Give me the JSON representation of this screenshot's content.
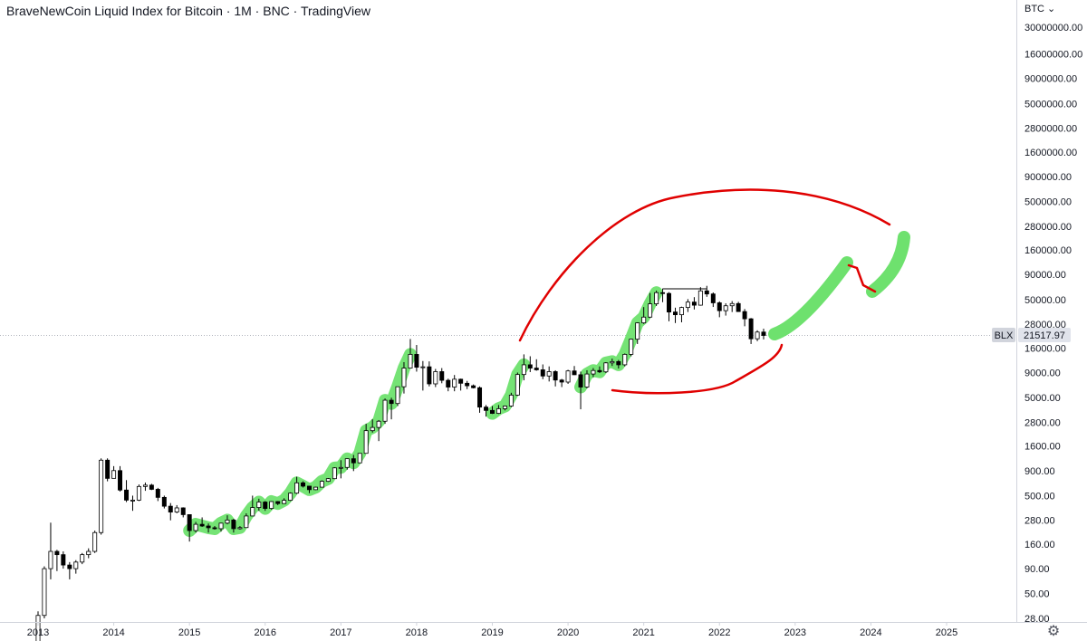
{
  "title": "BraveNewCoin Liquid Index for Bitcoin · 1M · BNC · TradingView",
  "currency_label": "BTC ⌄",
  "settings_icon": "gear-icon",
  "colors": {
    "candle_up_fill": "#ffffff",
    "candle_down_fill": "#000000",
    "candle_stroke": "#000000",
    "green_highlight": "#6ee16e",
    "red_annotation": "#e00000",
    "price_line": "#b2b5be",
    "symbol_tag_bg": "#d1d4dc",
    "price_tag_bg": "#e0e3eb"
  },
  "chart_data": {
    "type": "candlestick",
    "scale": "log",
    "title": "",
    "xlabel": "",
    "ylabel": "",
    "x_ticks": [
      "2013",
      "2014",
      "2015",
      "2016",
      "2017",
      "2018",
      "2019",
      "2020",
      "2021",
      "2022",
      "2023",
      "2024",
      "2025"
    ],
    "y_ticks": [
      "30000000.00",
      "16000000.00",
      "9000000.00",
      "5000000.00",
      "2800000.00",
      "1600000.00",
      "900000.00",
      "500000.00",
      "280000.00",
      "160000.00",
      "90000.00",
      "50000.00",
      "28000.00",
      "16000.00",
      "9000.00",
      "5000.00",
      "2800.00",
      "1600.00",
      "900.00",
      "500.00",
      "280.00",
      "160.00",
      "90.00",
      "50.00",
      "28.00"
    ],
    "ylim": [
      25,
      35000000
    ],
    "xlim": [
      2012.9,
      2026.1
    ],
    "symbol": "BLX",
    "last_price": "21517.97",
    "last_price_value": 21517.97,
    "candles_ohlc": [
      [
        2013.0,
        13,
        33,
        13,
        30
      ],
      [
        2013.083,
        30,
        95,
        28,
        90
      ],
      [
        2013.167,
        90,
        265,
        70,
        135
      ],
      [
        2013.25,
        135,
        140,
        85,
        125
      ],
      [
        2013.333,
        125,
        135,
        90,
        98
      ],
      [
        2013.417,
        98,
        105,
        70,
        90
      ],
      [
        2013.5,
        90,
        110,
        80,
        105
      ],
      [
        2013.583,
        105,
        130,
        100,
        125
      ],
      [
        2013.667,
        125,
        145,
        115,
        135
      ],
      [
        2013.75,
        135,
        220,
        130,
        210
      ],
      [
        2013.833,
        210,
        1200,
        200,
        1150
      ],
      [
        2013.917,
        1150,
        1200,
        700,
        750
      ],
      [
        2014.0,
        750,
        1000,
        750,
        900
      ],
      [
        2014.083,
        900,
        1000,
        550,
        570
      ],
      [
        2014.167,
        570,
        720,
        430,
        450
      ],
      [
        2014.25,
        450,
        500,
        350,
        450
      ],
      [
        2014.333,
        450,
        650,
        440,
        620
      ],
      [
        2014.417,
        620,
        680,
        560,
        640
      ],
      [
        2014.5,
        640,
        660,
        570,
        580
      ],
      [
        2014.583,
        580,
        600,
        440,
        480
      ],
      [
        2014.667,
        480,
        500,
        370,
        390
      ],
      [
        2014.75,
        390,
        420,
        280,
        340
      ],
      [
        2014.833,
        340,
        400,
        330,
        375
      ],
      [
        2014.917,
        375,
        380,
        300,
        320
      ],
      [
        2015.0,
        320,
        320,
        170,
        220
      ],
      [
        2015.083,
        220,
        270,
        210,
        255
      ],
      [
        2015.167,
        255,
        300,
        240,
        245
      ],
      [
        2015.25,
        245,
        260,
        210,
        235
      ],
      [
        2015.333,
        235,
        245,
        225,
        230
      ],
      [
        2015.417,
        230,
        265,
        215,
        262
      ],
      [
        2015.5,
        262,
        315,
        255,
        282
      ],
      [
        2015.583,
        282,
        290,
        210,
        230
      ],
      [
        2015.667,
        230,
        245,
        225,
        236
      ],
      [
        2015.75,
        236,
        330,
        235,
        310
      ],
      [
        2015.833,
        310,
        500,
        310,
        378
      ],
      [
        2015.917,
        378,
        465,
        350,
        430
      ],
      [
        2016.0,
        430,
        440,
        350,
        370
      ],
      [
        2016.083,
        370,
        440,
        360,
        435
      ],
      [
        2016.167,
        435,
        440,
        400,
        415
      ],
      [
        2016.25,
        415,
        470,
        415,
        448
      ],
      [
        2016.333,
        448,
        540,
        440,
        530
      ],
      [
        2016.417,
        530,
        780,
        520,
        675
      ],
      [
        2016.5,
        675,
        700,
        605,
        625
      ],
      [
        2016.583,
        625,
        625,
        530,
        575
      ],
      [
        2016.667,
        575,
        615,
        570,
        610
      ],
      [
        2016.75,
        610,
        715,
        605,
        700
      ],
      [
        2016.833,
        700,
        755,
        690,
        745
      ],
      [
        2016.917,
        745,
        975,
        745,
        960
      ],
      [
        2017.0,
        960,
        1150,
        750,
        970
      ],
      [
        2017.083,
        970,
        1200,
        920,
        1190
      ],
      [
        2017.167,
        1190,
        1300,
        890,
        1080
      ],
      [
        2017.25,
        1080,
        1350,
        1070,
        1350
      ],
      [
        2017.333,
        1350,
        2700,
        1350,
        2300
      ],
      [
        2017.417,
        2300,
        3000,
        2200,
        2480
      ],
      [
        2017.5,
        2480,
        2950,
        1800,
        2870
      ],
      [
        2017.583,
        2870,
        4900,
        2700,
        4700
      ],
      [
        2017.667,
        4700,
        4980,
        3000,
        4350
      ],
      [
        2017.75,
        4350,
        6450,
        4100,
        6450
      ],
      [
        2017.833,
        6450,
        11500,
        5500,
        10000
      ],
      [
        2017.917,
        10000,
        19800,
        10000,
        13800
      ],
      [
        2018.0,
        13800,
        17200,
        9200,
        10200
      ],
      [
        2018.083,
        10200,
        11800,
        5900,
        10300
      ],
      [
        2018.167,
        10300,
        11700,
        6500,
        6900
      ],
      [
        2018.25,
        6900,
        9800,
        6400,
        9200
      ],
      [
        2018.333,
        9200,
        10000,
        7000,
        7500
      ],
      [
        2018.417,
        7500,
        7800,
        5800,
        6400
      ],
      [
        2018.5,
        6400,
        8500,
        5800,
        7700
      ],
      [
        2018.583,
        7700,
        7800,
        5900,
        7000
      ],
      [
        2018.667,
        7000,
        7400,
        6100,
        6600
      ],
      [
        2018.75,
        6600,
        6800,
        6200,
        6300
      ],
      [
        2018.833,
        6300,
        6500,
        3500,
        4000
      ],
      [
        2018.917,
        4000,
        4200,
        3200,
        3700
      ],
      [
        2019.0,
        3700,
        4100,
        3400,
        3450
      ],
      [
        2019.083,
        3450,
        4200,
        3400,
        3850
      ],
      [
        2019.167,
        3850,
        4150,
        3700,
        4100
      ],
      [
        2019.25,
        4100,
        5600,
        4000,
        5300
      ],
      [
        2019.333,
        5300,
        9000,
        5200,
        8600
      ],
      [
        2019.417,
        8600,
        13800,
        7500,
        10800
      ],
      [
        2019.5,
        10800,
        13200,
        9100,
        10000
      ],
      [
        2019.583,
        10000,
        12300,
        9400,
        9600
      ],
      [
        2019.667,
        9600,
        10900,
        7700,
        8300
      ],
      [
        2019.75,
        8300,
        10400,
        7300,
        9200
      ],
      [
        2019.833,
        9200,
        9500,
        6500,
        7550
      ],
      [
        2019.917,
        7550,
        7750,
        6400,
        7200
      ],
      [
        2020.0,
        7200,
        9600,
        6900,
        9350
      ],
      [
        2020.083,
        9350,
        10500,
        8500,
        8550
      ],
      [
        2020.167,
        8550,
        9200,
        3800,
        6400
      ],
      [
        2020.25,
        6400,
        9500,
        6200,
        8700
      ],
      [
        2020.333,
        8700,
        10000,
        8100,
        9450
      ],
      [
        2020.417,
        9450,
        10400,
        8900,
        9150
      ],
      [
        2020.5,
        9150,
        11500,
        8900,
        11300
      ],
      [
        2020.583,
        11300,
        12500,
        10500,
        11650
      ],
      [
        2020.667,
        11650,
        12100,
        9900,
        10800
      ],
      [
        2020.75,
        10800,
        14100,
        10400,
        13800
      ],
      [
        2020.833,
        13800,
        19900,
        13200,
        19700
      ],
      [
        2020.917,
        19700,
        29300,
        17600,
        28900
      ],
      [
        2021.0,
        28900,
        41900,
        28200,
        33100
      ],
      [
        2021.083,
        33100,
        58300,
        32400,
        45200
      ],
      [
        2021.167,
        45200,
        61700,
        43000,
        58800
      ],
      [
        2021.25,
        58800,
        64800,
        47000,
        57700
      ],
      [
        2021.333,
        57700,
        59500,
        30000,
        37300
      ],
      [
        2021.417,
        37300,
        41300,
        28800,
        35000
      ],
      [
        2021.5,
        35000,
        42300,
        29300,
        41500
      ],
      [
        2021.583,
        41500,
        50500,
        37300,
        47100
      ],
      [
        2021.667,
        47100,
        52900,
        39600,
        43800
      ],
      [
        2021.75,
        43800,
        66900,
        43300,
        61300
      ],
      [
        2021.833,
        61300,
        69000,
        53300,
        57000
      ],
      [
        2021.917,
        57000,
        59100,
        42000,
        46300
      ],
      [
        2022.0,
        46300,
        47900,
        33000,
        38500
      ],
      [
        2022.083,
        38500,
        45800,
        34300,
        43200
      ],
      [
        2022.167,
        43200,
        48200,
        37300,
        45500
      ],
      [
        2022.25,
        45500,
        47400,
        37600,
        37700
      ],
      [
        2022.333,
        37700,
        40000,
        26700,
        31800
      ],
      [
        2022.417,
        31800,
        32400,
        17600,
        19900
      ],
      [
        2022.5,
        19900,
        24300,
        18800,
        23300
      ],
      [
        2022.583,
        23300,
        25200,
        19600,
        21517.97
      ]
    ],
    "annotations": [
      "green highlight strokes along rising segments",
      "red hand-drawn arc projections"
    ]
  }
}
